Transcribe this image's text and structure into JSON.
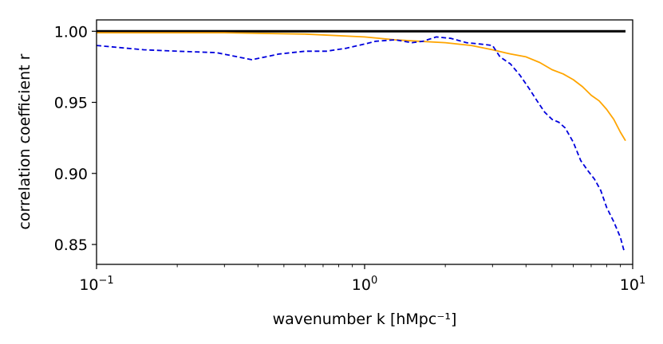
{
  "chart_data": {
    "type": "line",
    "xscale": "log",
    "xlim": [
      0.1,
      10
    ],
    "ylim": [
      0.836,
      1.008
    ],
    "xlabel": "wavenumber k [hMpc⁻¹]",
    "ylabel": "correlation coefficient r",
    "x_ticks": [
      {
        "value": 0.1,
        "base": "10",
        "exp": "−1"
      },
      {
        "value": 1,
        "base": "10",
        "exp": "0"
      },
      {
        "value": 10,
        "base": "10",
        "exp": "1"
      }
    ],
    "y_ticks": [
      {
        "value": 0.85,
        "label": "0.85"
      },
      {
        "value": 0.9,
        "label": "0.90"
      },
      {
        "value": 0.95,
        "label": "0.95"
      },
      {
        "value": 1.0,
        "label": "1.00"
      }
    ],
    "grid": false,
    "legend": "none",
    "series": [
      {
        "color": "#000000",
        "style": "solid",
        "width": 3,
        "x": [
          0.1,
          9.4
        ],
        "y": [
          1.0,
          1.0
        ]
      },
      {
        "color": "#FFA500",
        "style": "solid",
        "width": 1.8,
        "x": [
          0.1,
          0.3,
          0.6,
          1.0,
          1.3,
          1.6,
          2.0,
          2.5,
          3.0,
          3.5,
          4.0,
          4.5,
          5.0,
          5.5,
          6.0,
          6.5,
          7.0,
          7.5,
          8.0,
          8.5,
          9.0,
          9.4
        ],
        "y": [
          0.999,
          0.999,
          0.998,
          0.996,
          0.994,
          0.993,
          0.992,
          0.99,
          0.987,
          0.984,
          0.982,
          0.978,
          0.973,
          0.97,
          0.966,
          0.961,
          0.955,
          0.951,
          0.945,
          0.938,
          0.929,
          0.923
        ]
      },
      {
        "color": "#0000DD",
        "style": "dashed",
        "width": 1.8,
        "x": [
          0.1,
          0.15,
          0.2,
          0.28,
          0.38,
          0.48,
          0.6,
          0.72,
          0.85,
          1.0,
          1.1,
          1.3,
          1.5,
          1.65,
          1.85,
          2.1,
          2.4,
          2.7,
          3.0,
          3.2,
          3.5,
          3.8,
          4.1,
          4.4,
          4.7,
          5.0,
          5.3,
          5.6,
          6.0,
          6.4,
          6.8,
          7.2,
          7.6,
          8.0,
          8.5,
          9.0,
          9.3
        ],
        "y": [
          0.99,
          0.987,
          0.986,
          0.985,
          0.98,
          0.984,
          0.986,
          0.986,
          0.988,
          0.991,
          0.993,
          0.994,
          0.992,
          0.993,
          0.996,
          0.995,
          0.992,
          0.991,
          0.99,
          0.982,
          0.977,
          0.969,
          0.96,
          0.951,
          0.943,
          0.938,
          0.936,
          0.932,
          0.922,
          0.909,
          0.902,
          0.896,
          0.888,
          0.876,
          0.866,
          0.855,
          0.845
        ]
      }
    ]
  }
}
